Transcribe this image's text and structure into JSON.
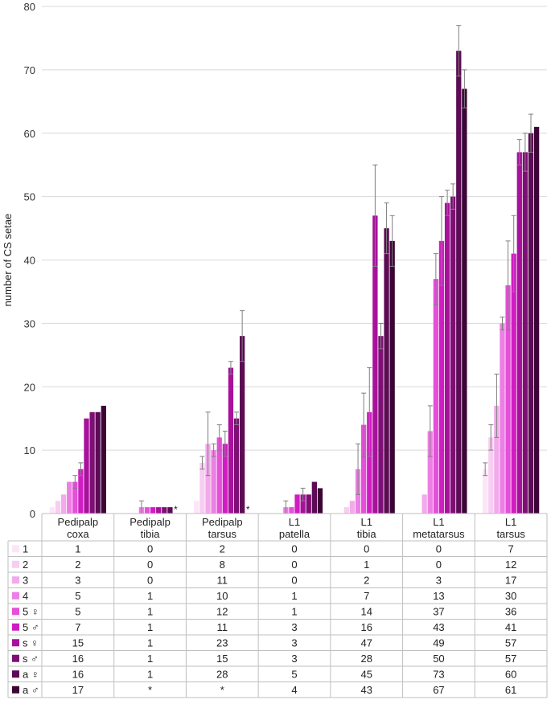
{
  "chart_data": {
    "type": "bar",
    "ylabel": "number of CS setae",
    "xlabel": "",
    "ylim": [
      0,
      80
    ],
    "yticks": [
      0,
      10,
      20,
      30,
      40,
      50,
      60,
      70,
      80
    ],
    "grid": true,
    "categories": [
      [
        "Pedipalp",
        "coxa"
      ],
      [
        "Pedipalp",
        "tibia"
      ],
      [
        "Pedipalp",
        "tarsus"
      ],
      [
        "L1",
        "patella"
      ],
      [
        "L1",
        "tibia"
      ],
      [
        "L1",
        "metatarsus"
      ],
      [
        "L1",
        "tarsus"
      ]
    ],
    "series": [
      {
        "name": "1",
        "color": "#fbe6f8",
        "values": [
          1,
          0,
          2,
          0,
          0,
          0,
          7
        ],
        "errors": [
          0,
          0,
          0,
          0,
          0,
          0,
          1
        ],
        "labels": [
          "1",
          "0",
          "2",
          "0",
          "0",
          "0",
          "7"
        ]
      },
      {
        "name": "2",
        "color": "#f7cdf1",
        "values": [
          2,
          0,
          8,
          0,
          1,
          0,
          12
        ],
        "errors": [
          0,
          0,
          1,
          0,
          0,
          0,
          2
        ],
        "labels": [
          "2",
          "0",
          "8",
          "0",
          "1",
          "0",
          "12"
        ]
      },
      {
        "name": "3",
        "color": "#f2aaeb",
        "values": [
          3,
          0,
          11,
          0,
          2,
          3,
          17
        ],
        "errors": [
          0,
          0,
          5,
          0,
          0,
          0,
          5
        ],
        "labels": [
          "3",
          "0",
          "11",
          "0",
          "2",
          "3",
          "17"
        ]
      },
      {
        "name": "4",
        "color": "#ec7fe3",
        "values": [
          5,
          1,
          10,
          1,
          7,
          13,
          30
        ],
        "errors": [
          0,
          1,
          1,
          1,
          4,
          4,
          1
        ],
        "labels": [
          "5",
          "1",
          "10",
          "1",
          "7",
          "13",
          "30"
        ]
      },
      {
        "name": "5 ♀",
        "color": "#e54fd9",
        "values": [
          5,
          1,
          12,
          1,
          14,
          37,
          36
        ],
        "errors": [
          1,
          0,
          2,
          0,
          5,
          4,
          7
        ],
        "labels": [
          "5",
          "1",
          "12",
          "1",
          "14",
          "37",
          "36"
        ]
      },
      {
        "name": "5 ♂",
        "color": "#d01dc2",
        "values": [
          7,
          1,
          11,
          3,
          16,
          43,
          41
        ],
        "errors": [
          1,
          0,
          2,
          0,
          7,
          7,
          6
        ],
        "labels": [
          "7",
          "1",
          "11",
          "3",
          "16",
          "43",
          "41"
        ]
      },
      {
        "name": "s ♀",
        "color": "#a8119b",
        "values": [
          15,
          1,
          23,
          3,
          47,
          49,
          57
        ],
        "errors": [
          0,
          0,
          1,
          1,
          8,
          2,
          2
        ],
        "labels": [
          "15",
          "1",
          "23",
          "3",
          "47",
          "49",
          "57"
        ]
      },
      {
        "name": "s ♂",
        "color": "#7e0f74",
        "values": [
          16,
          1,
          15,
          3,
          28,
          50,
          57
        ],
        "errors": [
          0,
          0,
          1,
          0,
          2,
          2,
          3
        ],
        "labels": [
          "16",
          "1",
          "15",
          "3",
          "28",
          "50",
          "57"
        ]
      },
      {
        "name": "a ♀",
        "color": "#5c0b55",
        "values": [
          16,
          1,
          28,
          5,
          45,
          73,
          60
        ],
        "errors": [
          0,
          0,
          4,
          0,
          4,
          4,
          3
        ],
        "labels": [
          "16",
          "1",
          "28",
          "5",
          "45",
          "73",
          "60"
        ]
      },
      {
        "name": "a ♂",
        "color": "#3b0636",
        "values": [
          17,
          null,
          null,
          4,
          43,
          67,
          61
        ],
        "errors": [
          0,
          0,
          0,
          0,
          4,
          3,
          0
        ],
        "labels": [
          "17",
          "*",
          "*",
          "4",
          "43",
          "67",
          "61"
        ]
      }
    ],
    "missing_marker": "*"
  }
}
